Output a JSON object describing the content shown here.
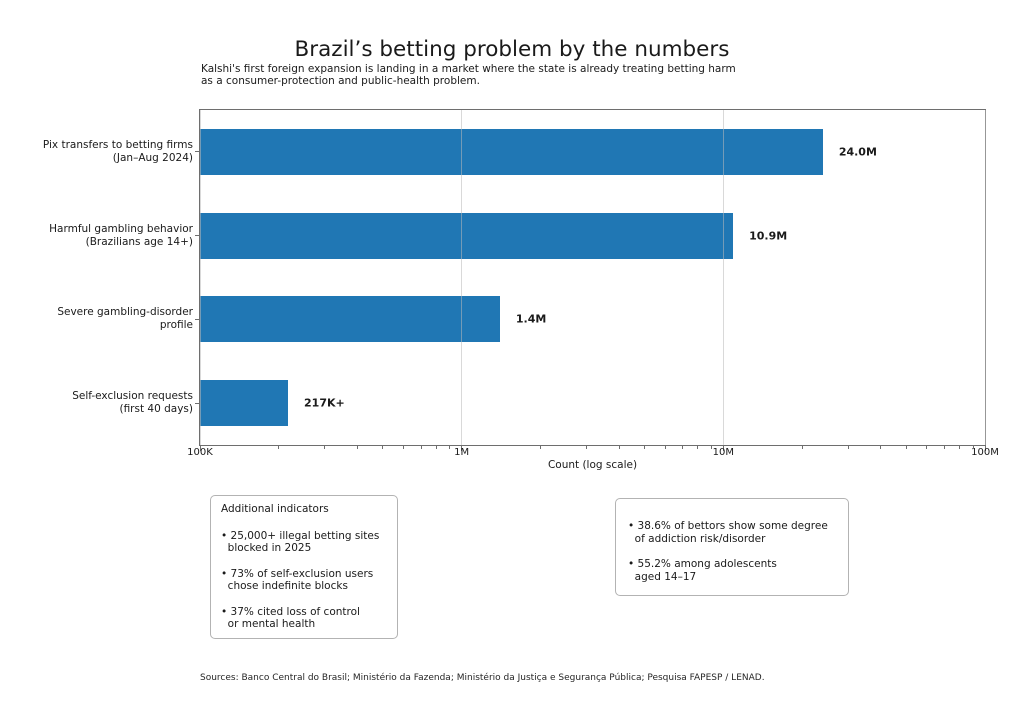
{
  "header": {
    "title": "Brazil’s betting problem by the numbers",
    "subtitle": "Kalshi's first foreign expansion is landing in a market where the state is already treating betting harm\nas a consumer-protection and public-health problem."
  },
  "chart_data": {
    "type": "bar",
    "orientation": "horizontal",
    "title": "Brazil’s betting problem by the numbers",
    "categories": [
      "Pix transfers to betting firms\n(Jan–Aug 2024)",
      "Harmful gambling behavior\n(Brazilians age 14+)",
      "Severe gambling-disorder\nprofile",
      "Self-exclusion requests\n(first 40 days)"
    ],
    "values": [
      24000000,
      10900000,
      1400000,
      217000
    ],
    "value_labels": [
      "24.0M",
      "10.9M",
      "1.4M",
      "217K+"
    ],
    "xlabel": "Count (log scale)",
    "ylabel": "",
    "xscale": "log",
    "xlim": [
      100000,
      100000000
    ],
    "xticks": [
      {
        "value": 100000,
        "label": "100K"
      },
      {
        "value": 1000000,
        "label": "1M"
      },
      {
        "value": 10000000,
        "label": "10M"
      },
      {
        "value": 100000000,
        "label": "100M"
      }
    ],
    "grid": "major-x-vertical",
    "legend": "none",
    "bar_color": "#2077b4"
  },
  "boxes": {
    "left": {
      "title": "Additional indicators",
      "bullets": [
        "• 25,000+ illegal betting sites\n  blocked in 2025",
        "• 73% of self-exclusion users\n  chose indefinite blocks",
        "• 37% cited loss of control\n  or mental health"
      ]
    },
    "right": {
      "bullets": [
        "• 38.6% of bettors show some degree\n  of addiction risk/disorder",
        "• 55.2% among adolescents\n  aged 14–17"
      ]
    }
  },
  "footer": {
    "sources": "Sources: Banco Central do Brasil; Ministério da Fazenda; Ministério da Justiça e Segurança Pública; Pesquisa FAPESP / LENAD."
  }
}
